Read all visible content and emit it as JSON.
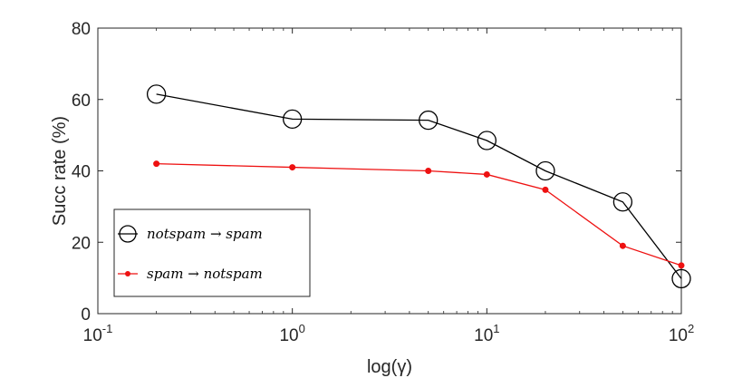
{
  "chart_data": {
    "type": "line",
    "xscale": "log",
    "xlabel": "log(γ)",
    "ylabel": "Succ rate (%)",
    "xlim": [
      0.1,
      100
    ],
    "ylim": [
      0,
      80
    ],
    "x_ticks": [
      {
        "base": "10",
        "exp": "-1"
      },
      {
        "base": "10",
        "exp": "0"
      },
      {
        "base": "10",
        "exp": "1"
      },
      {
        "base": "10",
        "exp": "2"
      }
    ],
    "y_ticks": [
      "0",
      "20",
      "40",
      "60",
      "80"
    ],
    "legend_position": "bottom-left",
    "series": [
      {
        "name": "notspam → spam",
        "color": "#000000",
        "marker": "open-circle",
        "x": [
          0.2,
          1,
          5,
          10,
          20,
          50,
          100
        ],
        "y": [
          61.5,
          54.5,
          54.2,
          48.5,
          40,
          31.3,
          9.8
        ]
      },
      {
        "name": "spam → notspam",
        "color": "#ee1111",
        "marker": "dot",
        "x": [
          0.2,
          1,
          5,
          10,
          20,
          50,
          100
        ],
        "y": [
          42,
          41,
          40,
          39,
          34.7,
          19,
          13.5
        ]
      }
    ]
  }
}
